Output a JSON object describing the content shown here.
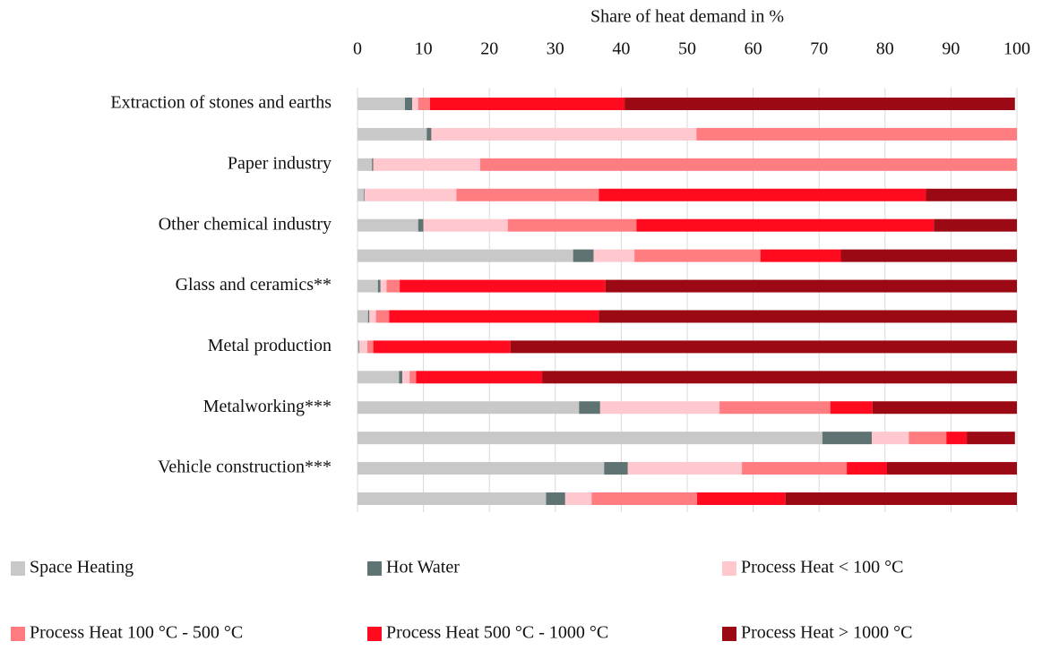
{
  "chart_data": {
    "type": "stacked-bar-horizontal",
    "xlabel": "Share of heat demand in %",
    "categories": [
      "Extraction of stones and earths",
      null,
      "Paper industry",
      null,
      "Other chemical industry",
      null,
      "Glass and ceramics**",
      null,
      "Metal production",
      null,
      "Metalworking***",
      null,
      "Vehicle construction***",
      null
    ],
    "xlim": [
      0,
      100
    ],
    "xticks": [
      0,
      10,
      20,
      30,
      40,
      50,
      60,
      70,
      80,
      90,
      100
    ],
    "grid": true,
    "series": [
      {
        "name": "Space Heating",
        "color": "#c8c8c8",
        "values": [
          7.2,
          10.5,
          2.2,
          1.0,
          9.2,
          32.7,
          3.1,
          1.6,
          0.2,
          6.3,
          33.6,
          70.5,
          37.4,
          28.6
        ]
      },
      {
        "name": "Hot Water",
        "color": "#5f7373",
        "values": [
          1.1,
          0.7,
          0.2,
          0.1,
          0.8,
          3.1,
          0.4,
          0.2,
          0.1,
          0.5,
          3.2,
          7.5,
          3.6,
          2.9
        ]
      },
      {
        "name": "Process Heat < 100 °C",
        "color": "#ffc7ce",
        "values": [
          0.9,
          40.2,
          16.2,
          13.9,
          12.8,
          6.2,
          0.9,
          1.0,
          1.2,
          1.1,
          18.1,
          5.6,
          17.3,
          4.0
        ]
      },
      {
        "name": "Process Heat 100 °C - 500 °C",
        "color": "#ff7c80",
        "values": [
          1.8,
          48.6,
          81.4,
          21.6,
          19.5,
          19.1,
          2.0,
          2.0,
          0.9,
          1.0,
          16.8,
          5.7,
          15.9,
          16.0
        ]
      },
      {
        "name": "Process Heat 500 °C - 1000 °C",
        "color": "#ff0a1e",
        "values": [
          29.5,
          0,
          0,
          49.6,
          45.1,
          12.2,
          31.2,
          31.8,
          20.8,
          19.1,
          6.4,
          3.1,
          6.1,
          13.4
        ]
      },
      {
        "name": "Process Heat > 1000 °C",
        "color": "#9b0a14",
        "values": [
          59.2,
          0,
          0,
          13.8,
          12.6,
          26.7,
          62.4,
          63.4,
          76.8,
          72.0,
          21.9,
          7.3,
          19.7,
          35.1
        ]
      }
    ]
  }
}
